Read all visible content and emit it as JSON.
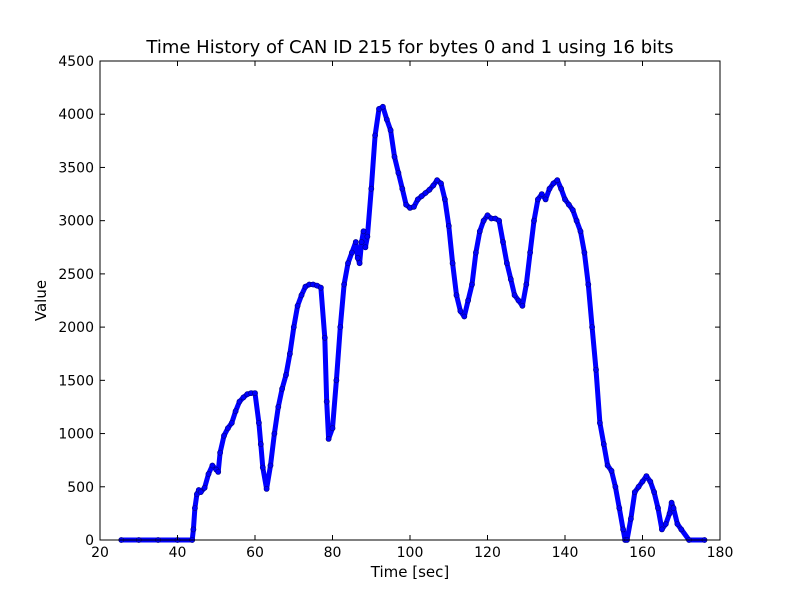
{
  "chart_data": {
    "type": "line",
    "title": "Time History of CAN ID 215 for bytes 0 and 1 using 16 bits",
    "xlabel": "Time [sec]",
    "ylabel": "Value",
    "xlim": [
      20,
      180
    ],
    "ylim": [
      0,
      4500
    ],
    "xticks": [
      20,
      40,
      60,
      80,
      100,
      120,
      140,
      160,
      180
    ],
    "yticks": [
      0,
      500,
      1000,
      1500,
      2000,
      2500,
      3000,
      3500,
      4000,
      4500
    ],
    "grid": false,
    "legend": "none",
    "series": [
      {
        "color": "#0000ff",
        "marker": "dot",
        "x": [
          25.5,
          30,
          35,
          40,
          43.8,
          44.1,
          44.5,
          45,
          45.5,
          46,
          47,
          48,
          49,
          50,
          50.5,
          51,
          52,
          53,
          54,
          55,
          56,
          57,
          58,
          59,
          60,
          61,
          61.5,
          62,
          63,
          64,
          65,
          66,
          67,
          68,
          69,
          70,
          71,
          72,
          73,
          74,
          75,
          76,
          77,
          78,
          78.5,
          79,
          80,
          81,
          82,
          83,
          84,
          85,
          86,
          86.5,
          87,
          87.5,
          88,
          88.5,
          89,
          90,
          91,
          92,
          93,
          94,
          95,
          96,
          97,
          98,
          99,
          100,
          101,
          102,
          103,
          104,
          105,
          106,
          107,
          108,
          109,
          110,
          111,
          112,
          113,
          114,
          115,
          116,
          117,
          118,
          119,
          120,
          121,
          122,
          123,
          124,
          125,
          126,
          127,
          128,
          129,
          130,
          131,
          132,
          133,
          134,
          135,
          136,
          137,
          138,
          139,
          140,
          141,
          142,
          143,
          144,
          145,
          146,
          147,
          148,
          149,
          150,
          151,
          152,
          153,
          154,
          155,
          155.5,
          156,
          157,
          158,
          159,
          160,
          161,
          162,
          163,
          164,
          165,
          166,
          167,
          167.5,
          168,
          169,
          170,
          172,
          176
        ],
        "y": [
          0,
          0,
          0,
          0,
          0,
          100,
          300,
          430,
          470,
          450,
          490,
          620,
          700,
          660,
          640,
          820,
          980,
          1050,
          1100,
          1210,
          1300,
          1340,
          1370,
          1380,
          1380,
          1100,
          900,
          680,
          480,
          700,
          1000,
          1250,
          1420,
          1550,
          1750,
          2000,
          2200,
          2300,
          2380,
          2400,
          2400,
          2390,
          2370,
          1900,
          1300,
          950,
          1050,
          1500,
          2000,
          2400,
          2600,
          2700,
          2800,
          2650,
          2600,
          2800,
          2900,
          2750,
          2850,
          3300,
          3800,
          4050,
          4070,
          3950,
          3850,
          3600,
          3450,
          3300,
          3150,
          3120,
          3130,
          3200,
          3230,
          3260,
          3290,
          3330,
          3380,
          3350,
          3200,
          2950,
          2600,
          2300,
          2150,
          2100,
          2250,
          2400,
          2700,
          2900,
          3000,
          3050,
          3020,
          3020,
          3000,
          2800,
          2600,
          2450,
          2300,
          2250,
          2200,
          2400,
          2700,
          3000,
          3200,
          3250,
          3200,
          3300,
          3350,
          3380,
          3300,
          3200,
          3150,
          3100,
          3000,
          2900,
          2700,
          2400,
          2000,
          1600,
          1100,
          900,
          700,
          650,
          500,
          300,
          100,
          0,
          0,
          200,
          450,
          500,
          550,
          600,
          550,
          450,
          300,
          100,
          150,
          250,
          350,
          300,
          150,
          100,
          0,
          0
        ]
      }
    ]
  }
}
